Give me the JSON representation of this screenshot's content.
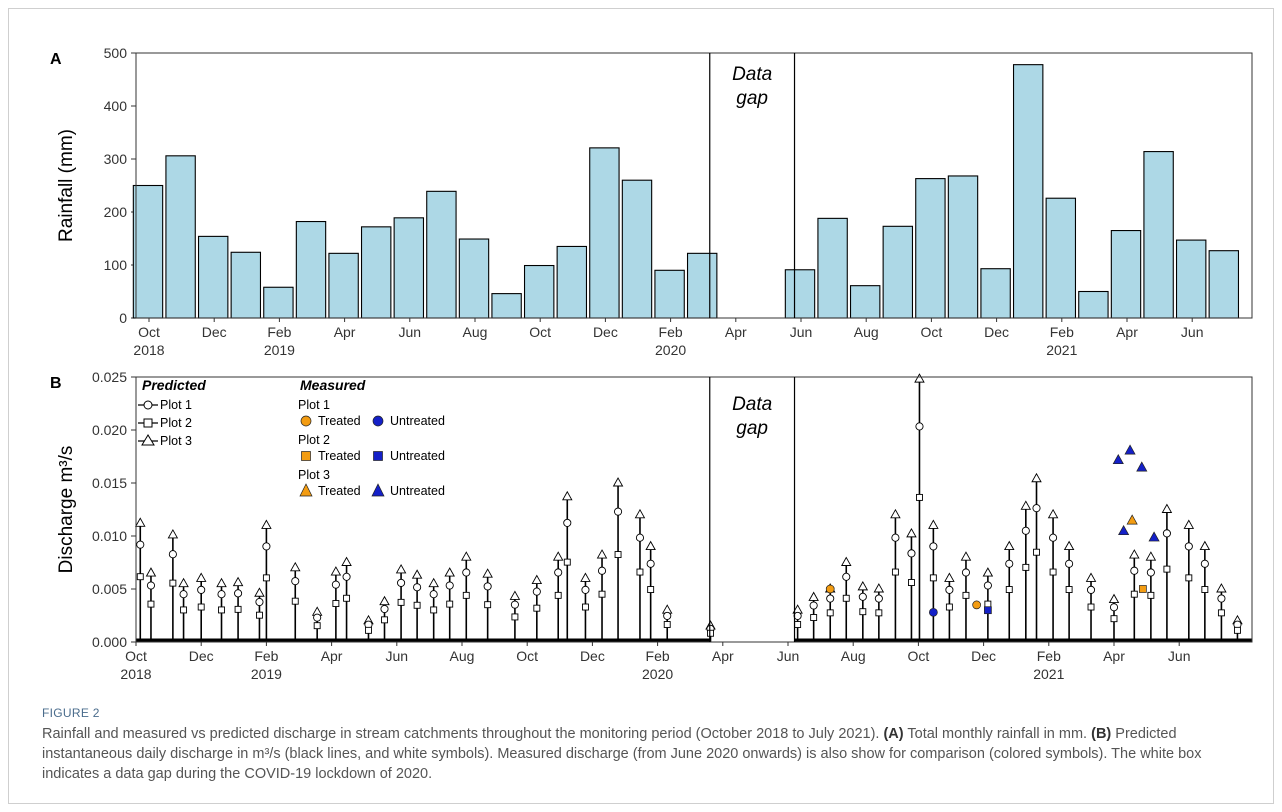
{
  "figure": {
    "label": "FIGURE 2",
    "caption_parts": [
      {
        "t": "Rainfall and measured vs predicted discharge in stream catchments throughout the monitoring period (October 2018 to July 2021). ",
        "b": false
      },
      {
        "t": "(A)",
        "b": true
      },
      {
        "t": " Total monthly rainfall in mm. ",
        "b": false
      },
      {
        "t": "(B)",
        "b": true
      },
      {
        "t": " Predicted instantaneous daily discharge in m³/s (black lines, and white symbols). Measured discharge (from June 2020 onwards) is also show for comparison (colored symbols). The white box indicates a data gap during the COVID-19 lockdown of 2020.",
        "b": false
      }
    ]
  },
  "colors": {
    "bar_fill": "#add8e6",
    "treated": "#f39c12",
    "untreated": "#1420c8",
    "line": "#000000"
  },
  "chart_data": [
    {
      "type": "bar",
      "panel": "A",
      "ylabel": "Rainfall (mm)",
      "ylim": [
        0,
        500
      ],
      "yticks": [
        0,
        100,
        200,
        300,
        400,
        500
      ],
      "x_tick_labels": [
        {
          "month": "Oct",
          "year": "2018"
        },
        {
          "month": "Dec",
          "year": ""
        },
        {
          "month": "Feb",
          "year": "2019"
        },
        {
          "month": "Apr",
          "year": ""
        },
        {
          "month": "Jun",
          "year": ""
        },
        {
          "month": "Aug",
          "year": ""
        },
        {
          "month": "Oct",
          "year": ""
        },
        {
          "month": "Dec",
          "year": ""
        },
        {
          "month": "Feb",
          "year": "2020"
        },
        {
          "month": "Apr",
          "year": ""
        },
        {
          "month": "Jun",
          "year": ""
        },
        {
          "month": "Aug",
          "year": ""
        },
        {
          "month": "Oct",
          "year": ""
        },
        {
          "month": "Dec",
          "year": ""
        },
        {
          "month": "Feb",
          "year": "2021"
        },
        {
          "month": "Apr",
          "year": ""
        },
        {
          "month": "Jun",
          "year": ""
        }
      ],
      "gap_label": [
        "Data",
        "gap"
      ],
      "gap_months": [
        "2020-04",
        "2020-05"
      ],
      "bars": [
        {
          "month": "2018-10",
          "value": 250
        },
        {
          "month": "2018-11",
          "value": 306
        },
        {
          "month": "2018-12",
          "value": 154
        },
        {
          "month": "2019-01",
          "value": 124
        },
        {
          "month": "2019-02",
          "value": 58
        },
        {
          "month": "2019-03",
          "value": 182
        },
        {
          "month": "2019-04",
          "value": 122
        },
        {
          "month": "2019-05",
          "value": 172
        },
        {
          "month": "2019-06",
          "value": 189
        },
        {
          "month": "2019-07",
          "value": 239
        },
        {
          "month": "2019-08",
          "value": 149
        },
        {
          "month": "2019-09",
          "value": 46
        },
        {
          "month": "2019-10",
          "value": 99
        },
        {
          "month": "2019-11",
          "value": 135
        },
        {
          "month": "2019-12",
          "value": 321
        },
        {
          "month": "2020-01",
          "value": 260
        },
        {
          "month": "2020-02",
          "value": 90
        },
        {
          "month": "2020-03",
          "value": 122
        },
        {
          "month": "2020-06",
          "value": 91
        },
        {
          "month": "2020-07",
          "value": 188
        },
        {
          "month": "2020-08",
          "value": 61
        },
        {
          "month": "2020-09",
          "value": 173
        },
        {
          "month": "2020-10",
          "value": 263
        },
        {
          "month": "2020-11",
          "value": 268
        },
        {
          "month": "2020-12",
          "value": 93
        },
        {
          "month": "2021-01",
          "value": 478
        },
        {
          "month": "2021-02",
          "value": 226
        },
        {
          "month": "2021-03",
          "value": 50
        },
        {
          "month": "2021-04",
          "value": 165
        },
        {
          "month": "2021-05",
          "value": 314
        },
        {
          "month": "2021-06",
          "value": 147
        },
        {
          "month": "2021-07",
          "value": 127
        }
      ]
    },
    {
      "type": "scatter",
      "panel": "B",
      "ylabel": "Discharge m³/s",
      "ylim": [
        0,
        0.025
      ],
      "yticks": [
        "0.000",
        "0.005",
        "0.010",
        "0.015",
        "0.020",
        "0.025"
      ],
      "gap_label": [
        "Data",
        "gap"
      ],
      "legend": {
        "predicted_title": "Predicted",
        "predicted_items": [
          "Plot 1",
          "Plot 2",
          "Plot 3"
        ],
        "measured_title": "Measured",
        "groups": [
          "Plot 1",
          "Plot 2",
          "Plot 3"
        ],
        "treated_label": "Treated",
        "untreated_label": "Untreated"
      },
      "predicted_peaks": [
        {
          "date": "2018-10-05",
          "value": 0.0112
        },
        {
          "date": "2018-10-15",
          "value": 0.0065
        },
        {
          "date": "2018-11-05",
          "value": 0.0101
        },
        {
          "date": "2018-11-15",
          "value": 0.0055
        },
        {
          "date": "2018-12-01",
          "value": 0.006
        },
        {
          "date": "2018-12-20",
          "value": 0.0055
        },
        {
          "date": "2019-01-05",
          "value": 0.0056
        },
        {
          "date": "2019-01-25",
          "value": 0.0046
        },
        {
          "date": "2019-02-01",
          "value": 0.011
        },
        {
          "date": "2019-02-28",
          "value": 0.007
        },
        {
          "date": "2019-03-18",
          "value": 0.0028
        },
        {
          "date": "2019-04-05",
          "value": 0.0066
        },
        {
          "date": "2019-04-15",
          "value": 0.0075
        },
        {
          "date": "2019-05-05",
          "value": 0.002
        },
        {
          "date": "2019-05-20",
          "value": 0.0038
        },
        {
          "date": "2019-06-05",
          "value": 0.0068
        },
        {
          "date": "2019-06-20",
          "value": 0.0063
        },
        {
          "date": "2019-07-05",
          "value": 0.0055
        },
        {
          "date": "2019-07-20",
          "value": 0.0065
        },
        {
          "date": "2019-08-05",
          "value": 0.008
        },
        {
          "date": "2019-08-25",
          "value": 0.0064
        },
        {
          "date": "2019-09-20",
          "value": 0.0043
        },
        {
          "date": "2019-10-10",
          "value": 0.0058
        },
        {
          "date": "2019-10-30",
          "value": 0.008
        },
        {
          "date": "2019-11-08",
          "value": 0.0137
        },
        {
          "date": "2019-11-25",
          "value": 0.006
        },
        {
          "date": "2019-12-10",
          "value": 0.0082
        },
        {
          "date": "2019-12-25",
          "value": 0.015
        },
        {
          "date": "2020-01-15",
          "value": 0.012
        },
        {
          "date": "2020-01-25",
          "value": 0.009
        },
        {
          "date": "2020-02-10",
          "value": 0.003
        },
        {
          "date": "2020-03-20",
          "value": 0.0015
        },
        {
          "date": "2020-06-10",
          "value": 0.003
        },
        {
          "date": "2020-06-25",
          "value": 0.0042
        },
        {
          "date": "2020-07-10",
          "value": 0.005
        },
        {
          "date": "2020-07-25",
          "value": 0.0075
        },
        {
          "date": "2020-08-10",
          "value": 0.0052
        },
        {
          "date": "2020-08-25",
          "value": 0.005
        },
        {
          "date": "2020-09-10",
          "value": 0.012
        },
        {
          "date": "2020-09-25",
          "value": 0.0102
        },
        {
          "date": "2020-10-02",
          "value": 0.0248
        },
        {
          "date": "2020-10-15",
          "value": 0.011
        },
        {
          "date": "2020-10-30",
          "value": 0.006
        },
        {
          "date": "2020-11-15",
          "value": 0.008
        },
        {
          "date": "2020-12-05",
          "value": 0.0065
        },
        {
          "date": "2020-12-25",
          "value": 0.009
        },
        {
          "date": "2021-01-10",
          "value": 0.0128
        },
        {
          "date": "2021-01-20",
          "value": 0.0154
        },
        {
          "date": "2021-02-05",
          "value": 0.012
        },
        {
          "date": "2021-02-20",
          "value": 0.009
        },
        {
          "date": "2021-03-10",
          "value": 0.006
        },
        {
          "date": "2021-04-01",
          "value": 0.004
        },
        {
          "date": "2021-04-20",
          "value": 0.0082
        },
        {
          "date": "2021-05-05",
          "value": 0.008
        },
        {
          "date": "2021-05-20",
          "value": 0.0125
        },
        {
          "date": "2021-06-10",
          "value": 0.011
        },
        {
          "date": "2021-06-25",
          "value": 0.009
        },
        {
          "date": "2021-07-10",
          "value": 0.005
        },
        {
          "date": "2021-07-25",
          "value": 0.002
        }
      ],
      "measured_highlights": [
        {
          "date": "2021-04-18",
          "value": 0.0115,
          "plot": "Plot 3",
          "status": "Treated"
        },
        {
          "date": "2021-04-05",
          "value": 0.0172,
          "plot": "Plot 3",
          "status": "Untreated"
        },
        {
          "date": "2021-04-16",
          "value": 0.0181,
          "plot": "Plot 3",
          "status": "Untreated"
        },
        {
          "date": "2021-04-27",
          "value": 0.0165,
          "plot": "Plot 3",
          "status": "Untreated"
        },
        {
          "date": "2021-04-10",
          "value": 0.0105,
          "plot": "Plot 3",
          "status": "Untreated"
        },
        {
          "date": "2021-05-08",
          "value": 0.0099,
          "plot": "Plot 3",
          "status": "Untreated"
        },
        {
          "date": "2021-04-28",
          "value": 0.005,
          "plot": "Plot 2",
          "status": "Treated"
        },
        {
          "date": "2020-07-10",
          "value": 0.005,
          "plot": "Plot 1",
          "status": "Treated"
        },
        {
          "date": "2020-11-25",
          "value": 0.0035,
          "plot": "Plot 1",
          "status": "Treated"
        },
        {
          "date": "2020-10-15",
          "value": 0.0028,
          "plot": "Plot 1",
          "status": "Untreated"
        },
        {
          "date": "2020-12-05",
          "value": 0.003,
          "plot": "Plot 2",
          "status": "Untreated"
        }
      ]
    }
  ]
}
